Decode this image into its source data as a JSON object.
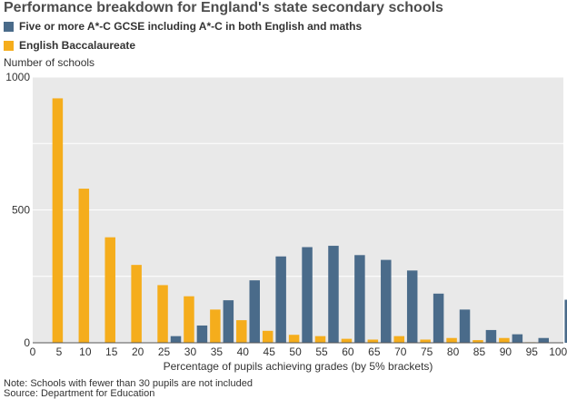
{
  "chart_data": {
    "type": "bar",
    "title": "Performance breakdown for England's state secondary schools",
    "xlabel": "Percentage of pupils achieving grades (by 5% brackets)",
    "ylabel": "Number of schools",
    "xticks": [
      "0",
      "5",
      "10",
      "15",
      "20",
      "25",
      "30",
      "35",
      "40",
      "45",
      "50",
      "55",
      "60",
      "65",
      "70",
      "75",
      "80",
      "85",
      "90",
      "95",
      "100"
    ],
    "yticks": [
      "0",
      "500",
      "1000"
    ],
    "ylim": [
      0,
      1000
    ],
    "grid": true,
    "legend_position": "top-left",
    "brackets": [
      5,
      10,
      15,
      20,
      25,
      30,
      35,
      40,
      45,
      50,
      55,
      60,
      65,
      70,
      75,
      80,
      85,
      90,
      95,
      100
    ],
    "series": [
      {
        "name": "Five or more A*-C GCSE including A*-C in both English and maths",
        "color": "#4a6b8a",
        "values": [
          0,
          0,
          0,
          0,
          25,
          65,
          160,
          235,
          325,
          360,
          365,
          330,
          312,
          272,
          185,
          125,
          48,
          32,
          18,
          162
        ]
      },
      {
        "name": "English Baccalaureate",
        "color": "#f5ad1c",
        "values": [
          920,
          580,
          397,
          293,
          217,
          175,
          125,
          85,
          45,
          30,
          25,
          15,
          12,
          25,
          12,
          18,
          10,
          18,
          2,
          0
        ]
      }
    ]
  },
  "notes": [
    "Note: Schools with fewer than 30 pupils are not included",
    "Source: Department for Education"
  ]
}
